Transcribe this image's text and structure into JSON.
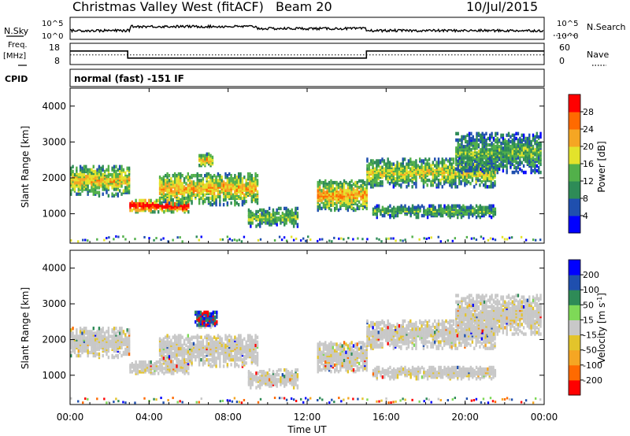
{
  "chart_data": [
    {
      "type": "line",
      "panel": "header",
      "title_left": "Christmas Valley West (fitACF)",
      "title_mid": "Beam 20",
      "title_right": "10/Jul/2015",
      "nsky_label": "N.Sky",
      "nsearch_label": "N.Search",
      "freq_label": "Freq.",
      "freq_unit": "[MHz]",
      "nave_label": "Nave",
      "cpid_label": "CPID",
      "cpid_text": "normal (fast) -151 IF",
      "noise_ticks": [
        "10^5",
        "10^0"
      ],
      "freq_ticks": [
        "18",
        "8"
      ],
      "freq_ylim": [
        8,
        18
      ],
      "nave_ticks": [
        "60",
        "0"
      ],
      "freq_series": {
        "x_hours": [
          0,
          2.92,
          2.92,
          15.0,
          15.0,
          24
        ],
        "mhz": [
          14.5,
          14.5,
          10.9,
          10.9,
          14.5,
          14.5
        ]
      },
      "nave_level_dotted": 27,
      "noise_segments": [
        {
          "from_hour": 0,
          "to_hour": 3,
          "level": 0.35
        },
        {
          "from_hour": 3,
          "to_hour": 9.5,
          "level": 0.55
        },
        {
          "from_hour": 9.5,
          "to_hour": 15,
          "level": 0.45
        },
        {
          "from_hour": 15,
          "to_hour": 24,
          "level": 0.35
        }
      ]
    },
    {
      "type": "heatmap",
      "panel": "power",
      "ylabel": "Slant Range [km]",
      "yticks": [
        "1000",
        "2000",
        "3000",
        "4000"
      ],
      "ylim": [
        180,
        4500
      ],
      "xlim": [
        0,
        24
      ],
      "colorbar_label": "Power [dB]",
      "colorbar_ticks": [
        "4",
        "8",
        "12",
        "16",
        "20",
        "24",
        "28"
      ],
      "colorbar_range": [
        0,
        32
      ],
      "colors": [
        "#0000ff",
        "#1f4fae",
        "#2e8b57",
        "#52b04a",
        "#e3e32b",
        "#f5a623",
        "#ff6a00",
        "#ff0000"
      ],
      "echo_regions": [
        {
          "t0": 0,
          "t1": 3,
          "r0": 1550,
          "r1": 2400,
          "strength": 0.55
        },
        {
          "t0": 3,
          "t1": 6,
          "r0": 1100,
          "r1": 1450,
          "strength": 0.95
        },
        {
          "t0": 4.5,
          "t1": 9.5,
          "r0": 1300,
          "r1": 2200,
          "strength": 0.6
        },
        {
          "t0": 6.5,
          "t1": 7.2,
          "r0": 2350,
          "r1": 2750,
          "strength": 0.6
        },
        {
          "t0": 9,
          "t1": 11.5,
          "r0": 700,
          "r1": 1200,
          "strength": 0.4
        },
        {
          "t0": 12.5,
          "t1": 15,
          "r0": 1150,
          "r1": 2000,
          "strength": 0.65
        },
        {
          "t0": 15,
          "t1": 21.5,
          "r0": 1800,
          "r1": 2600,
          "strength": 0.5
        },
        {
          "t0": 15.3,
          "t1": 21.5,
          "r0": 950,
          "r1": 1300,
          "strength": 0.35
        },
        {
          "t0": 19.5,
          "t1": 23.8,
          "r0": 2200,
          "r1": 3300,
          "strength": 0.35
        }
      ]
    },
    {
      "type": "heatmap",
      "panel": "velocity",
      "ylabel": "Slant Range [km]",
      "yticks": [
        "1000",
        "2000",
        "3000",
        "4000"
      ],
      "ylim": [
        180,
        4500
      ],
      "xlim": [
        0,
        24
      ],
      "xlabel": "Time UT",
      "xticks": [
        "00:00",
        "04:00",
        "08:00",
        "12:00",
        "16:00",
        "20:00",
        "00:00"
      ],
      "colorbar_label": "Velocity [m s",
      "colorbar_label_sup": "-1",
      "colorbar_label_end": "]",
      "colorbar_ticks": [
        "-200",
        "-100",
        "-50",
        "-15",
        "15",
        "50",
        "100",
        "200"
      ],
      "colors": [
        "#ff0000",
        "#ff6a00",
        "#f5a623",
        "#e3c42b",
        "#c8c8c8",
        "#7ed957",
        "#2e8b57",
        "#1f4fae",
        "#0000ff"
      ],
      "dominant_color": "#c8c8c8"
    }
  ]
}
